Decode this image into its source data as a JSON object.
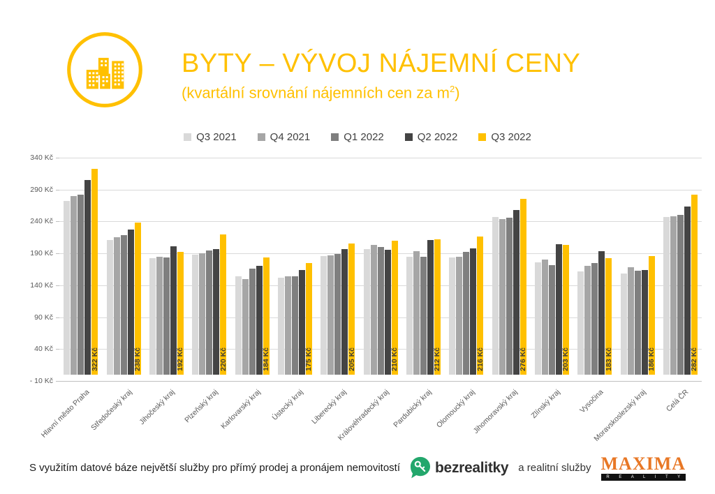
{
  "header": {
    "icon": "city-buildings-circle-icon",
    "title": "BYTY – VÝVOJ NÁJEMNÍ CENY",
    "subtitle_prefix": "(kvartální srovnání nájemních cen za m",
    "subtitle_sup": "2",
    "subtitle_suffix": ")",
    "accent_color": "#FFC000"
  },
  "chart_data": {
    "type": "bar",
    "title": "BYTY – VÝVOJ NÁJEMNÍ CENY",
    "subtitle": "(kvartální srovnání nájemních cen za m2)",
    "unit": "Kč",
    "grid": true,
    "legend_position": "top",
    "categories": [
      "Hlavní město Praha",
      "Středočeský kraj",
      "Jihočeský kraj",
      "Plzeňský kraj",
      "Karlovarský kraj",
      "Ústecký kraj",
      "Liberecký kraj",
      "Královéhradecký kraj",
      "Pardubický kraj",
      "Olomoucký kraj",
      "Jihomoravský kraj",
      "Zlínský kraj",
      "Vysočina",
      "Moravskoslezský kraj",
      "Celá ČR"
    ],
    "series": [
      {
        "name": "Q3 2021",
        "color": "#D9D9D9",
        "values": [
          272,
          211,
          183,
          188,
          154,
          152,
          186,
          197,
          185,
          184,
          247,
          176,
          162,
          158,
          247
        ]
      },
      {
        "name": "Q4 2021",
        "color": "#A6A6A6",
        "values": [
          280,
          215,
          185,
          190,
          150,
          154,
          187,
          203,
          193,
          185,
          244,
          180,
          170,
          168,
          248
        ]
      },
      {
        "name": "Q1 2022",
        "color": "#7F7F7F",
        "values": [
          282,
          219,
          184,
          195,
          166,
          154,
          189,
          200,
          185,
          192,
          246,
          172,
          175,
          163,
          250
        ]
      },
      {
        "name": "Q2 2022",
        "color": "#444444",
        "values": [
          305,
          227,
          201,
          197,
          171,
          164,
          197,
          196,
          211,
          198,
          258,
          204,
          193,
          164,
          263
        ]
      },
      {
        "name": "Q3 2022",
        "color": "#FFC000",
        "values": [
          322,
          238,
          192,
          220,
          184,
          175,
          205,
          210,
          212,
          216,
          276,
          203,
          183,
          186,
          282
        ],
        "data_labels": [
          "322 Kč",
          "238 Kč",
          "192 Kč",
          "220 Kč",
          "184 Kč",
          "175 Kč",
          "205 Kč",
          "210 Kč",
          "212 Kč",
          "216 Kč",
          "276 Kč",
          "203 Kč",
          "183 Kč",
          "186 Kč",
          "282 Kč"
        ]
      }
    ],
    "y_axis": {
      "min": -10,
      "max": 340,
      "tick_step": 50,
      "tick_labels": [
        "340 Kč",
        "290 Kč",
        "240 Kč",
        "190 Kč",
        "140 Kč",
        "90 Kč",
        "40 Kč",
        "- 10 Kč"
      ]
    }
  },
  "footer": {
    "text": "S využitím datové báze největší služby pro přímý prodej a pronájem nemovitostí",
    "bezrealitky_label": "bezrealitky",
    "bezrealitky_green": "#23A76C",
    "middle_text": "a realitní služby",
    "maxima_label": "MAXIMA",
    "maxima_sub": "R E A L I T Y",
    "maxima_orange": "#E87725"
  }
}
